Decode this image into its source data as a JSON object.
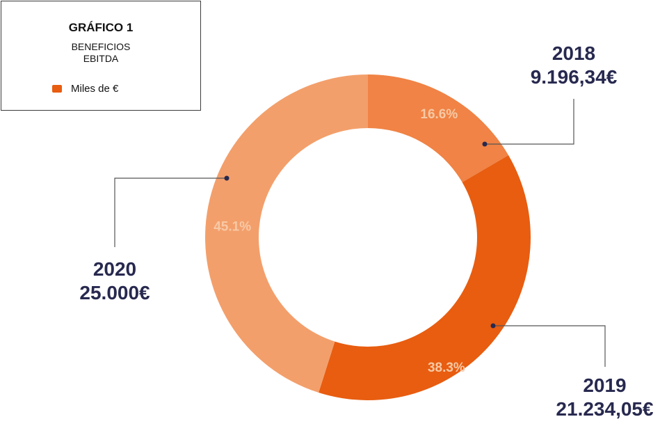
{
  "legend": {
    "title": "GRÁFICO 1",
    "subtitle_line1": "BENEFICIOS",
    "subtitle_line2": "EBITDA",
    "entry_label": "Miles de €",
    "entry_color": "#e85d10"
  },
  "chart_data": {
    "type": "pie",
    "variant": "donut",
    "title": "GRÁFICO 1",
    "subtitle": "BENEFICIOS EBITDA",
    "legend": [
      "Miles de €"
    ],
    "legend_placement": "top-left",
    "series": [
      {
        "name": "Miles de €",
        "categories": [
          "2018",
          "2019",
          "2020"
        ],
        "values": [
          9196.34,
          21234.05,
          25000
        ],
        "value_labels": [
          "9.196,34€",
          "21.234,05€",
          "25.000€"
        ],
        "percent_labels": [
          "16.6%",
          "38.3%",
          "45.1%"
        ],
        "colors": [
          "#f08345",
          "#e85d10",
          "#f39f6b"
        ]
      }
    ]
  },
  "callouts": [
    {
      "year": "2018",
      "value": "9.196,34€"
    },
    {
      "year": "2019",
      "value": "21.234,05€"
    },
    {
      "year": "2020",
      "value": "25.000€"
    }
  ],
  "colors": {
    "callout_text": "#27294f",
    "leader_line": "#555555",
    "leader_dot": "#27294f",
    "percent_text": "#f7c9a6"
  }
}
